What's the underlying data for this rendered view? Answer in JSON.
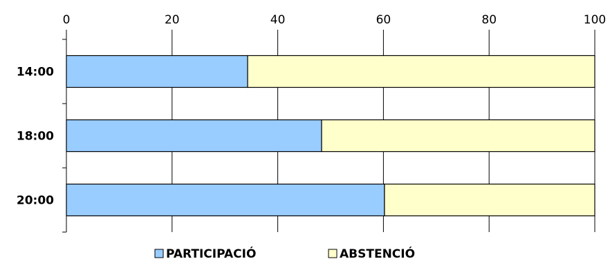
{
  "chart_data": {
    "type": "bar",
    "orientation": "horizontal",
    "stacked": true,
    "categories": [
      "14:00",
      "18:00",
      "20:00"
    ],
    "series": [
      {
        "name": "PARTICIPACIÓ",
        "values": [
          34.3,
          48.3,
          60.2
        ],
        "color": "#99ccff"
      },
      {
        "name": "ABSTENCIÓ",
        "values": [
          65.7,
          51.7,
          39.8
        ],
        "color": "#ffffcc"
      }
    ],
    "xlim": [
      0,
      100
    ],
    "xticks": [
      "0",
      "20",
      "40",
      "60",
      "80",
      "100"
    ],
    "xtick_values": [
      0,
      20,
      40,
      60,
      80,
      100
    ],
    "x_axis_position": "top",
    "grid": true,
    "legend_placement": "bottom"
  }
}
